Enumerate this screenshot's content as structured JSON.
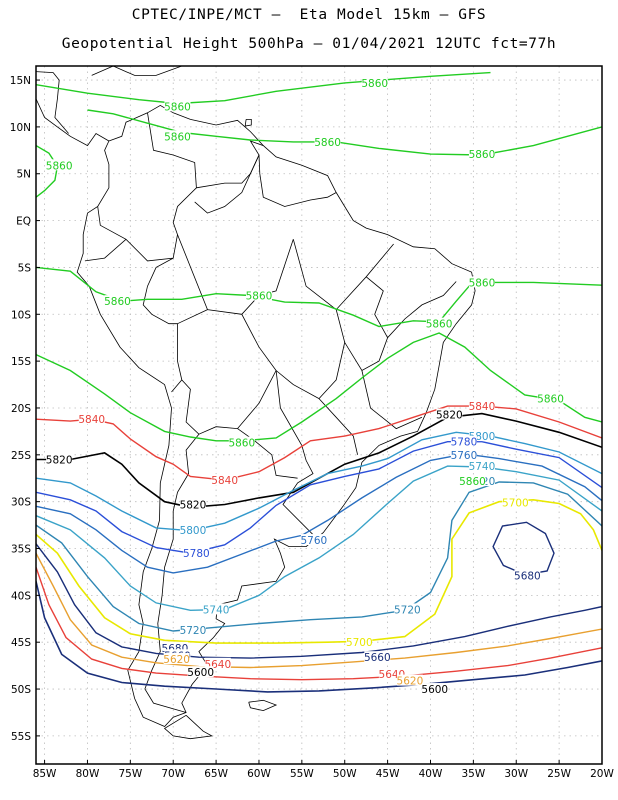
{
  "title_line1": "CPTEC/INPE/MCT –  Eta Model 15km – GFS",
  "title_line2": "Geopotential Height 500hPa – 01/04/2021 12UTC fct=77h",
  "lat_ticks": [
    "15N",
    "10N",
    "5N",
    "EQ",
    "5S",
    "10S",
    "15S",
    "20S",
    "25S",
    "30S",
    "35S",
    "40S",
    "45S",
    "50S",
    "55S"
  ],
  "lon_ticks": [
    "85W",
    "80W",
    "75W",
    "70W",
    "65W",
    "60W",
    "55W",
    "50W",
    "45W",
    "40W",
    "35W",
    "30W",
    "25W",
    "20W"
  ],
  "colors": {
    "5860": "#22cc22",
    "5840": "#e8413a",
    "5820": "#000000",
    "5800": "#3399cc",
    "5780": "#2b4fd8",
    "5760": "#2a6fc0",
    "5740": "#3aa3c8",
    "5720": "#2f86b3",
    "5700": "#e8e800",
    "5680": "#1a2f7a",
    "5660": "#1a2f7a",
    "5640": "#e8413a",
    "5620": "#e8a030",
    "coast": "#000000"
  },
  "contours": [
    {
      "value": 5860,
      "labels": [
        {
          "text": "5860",
          "lon": -69.5,
          "lat": 12.2
        },
        {
          "text": "5860",
          "lon": -46.5,
          "lat": 14.7
        },
        {
          "text": "5860",
          "lon": -69.5,
          "lat": 9.0
        },
        {
          "text": "5860",
          "lon": -52,
          "lat": 8.4
        },
        {
          "text": "5860",
          "lon": -34,
          "lat": 7.1
        },
        {
          "text": "5860",
          "lon": -83.3,
          "lat": 5.9
        },
        {
          "text": "5860",
          "lon": -76.5,
          "lat": -8.6
        },
        {
          "text": "5860",
          "lon": -60,
          "lat": -8.0
        },
        {
          "text": "5860",
          "lon": -39,
          "lat": -11.0
        },
        {
          "text": "5860",
          "lon": -34,
          "lat": -6.6
        },
        {
          "text": "5860",
          "lon": -26,
          "lat": -19.0
        },
        {
          "text": "5860",
          "lon": -62,
          "lat": -23.7
        }
      ]
    },
    {
      "value": 5840,
      "labels": [
        {
          "text": "5840",
          "lon": -79.5,
          "lat": -21.2
        },
        {
          "text": "5840",
          "lon": -34,
          "lat": -19.8
        },
        {
          "text": "5840",
          "lon": -64,
          "lat": -27.7
        }
      ]
    },
    {
      "value": 5820,
      "labels": [
        {
          "text": "5820",
          "lon": -83.3,
          "lat": -25.5
        },
        {
          "text": "5820",
          "lon": -37.8,
          "lat": -20.7
        },
        {
          "text": "5820",
          "lon": -67.7,
          "lat": -30.3
        }
      ]
    },
    {
      "value": 5800,
      "labels": [
        {
          "text": "5800",
          "lon": -34,
          "lat": -23.0
        },
        {
          "text": "5800",
          "lon": -67.7,
          "lat": -33.0
        }
      ]
    },
    {
      "value": 5780,
      "labels": [
        {
          "text": "5780",
          "lon": -36.1,
          "lat": -23.6
        },
        {
          "text": "5780",
          "lon": -67.3,
          "lat": -35.5
        }
      ]
    },
    {
      "value": 5760,
      "labels": [
        {
          "text": "5760",
          "lon": -36.1,
          "lat": -25.0
        },
        {
          "text": "5760",
          "lon": -53.6,
          "lat": -34.1
        }
      ]
    },
    {
      "value": 5740,
      "labels": [
        {
          "text": "5740",
          "lon": -34,
          "lat": -26.2
        },
        {
          "text": "5740",
          "lon": -65,
          "lat": -41.5
        }
      ]
    },
    {
      "value": 5720,
      "labels": [
        {
          "text": "5720",
          "lon": -34,
          "lat": -27.8
        },
        {
          "text": "5720",
          "lon": -67.7,
          "lat": -43.7
        },
        {
          "text": "5720",
          "lon": -42.7,
          "lat": -41.5
        }
      ]
    },
    {
      "value": 5700,
      "labels": [
        {
          "text": "5700",
          "lon": -30.1,
          "lat": -30.1
        },
        {
          "text": "5700",
          "lon": -48.3,
          "lat": -45.0
        }
      ]
    },
    {
      "value": 5680,
      "labels": [
        {
          "text": "5680",
          "lon": -28.7,
          "lat": -37.9
        },
        {
          "text": "5680",
          "lon": -69.8,
          "lat": -45.6
        }
      ]
    },
    {
      "value": 5660,
      "labels": [
        {
          "text": "5660",
          "lon": -46.2,
          "lat": -46.6
        },
        {
          "text": "5660",
          "lon": -69.5,
          "lat": -46.4
        }
      ]
    },
    {
      "value": 5640,
      "labels": [
        {
          "text": "5640",
          "lon": -64.8,
          "lat": -47.3
        },
        {
          "text": "5640",
          "lon": -44.5,
          "lat": -48.4
        }
      ]
    },
    {
      "value": 5620,
      "labels": [
        {
          "text": "5620",
          "lon": -69.6,
          "lat": -46.8
        },
        {
          "text": "5620",
          "lon": -42.4,
          "lat": -49.1
        }
      ]
    },
    {
      "value": 5600,
      "labels": [
        {
          "text": "5600",
          "lon": -66.8,
          "lat": -48.2
        },
        {
          "text": "5600",
          "lon": -39.5,
          "lat": -50.0
        }
      ]
    },
    {
      "value": 5860,
      "labels": [
        {
          "text": "5860",
          "lon": -35.1,
          "lat": -27.8
        }
      ]
    }
  ]
}
